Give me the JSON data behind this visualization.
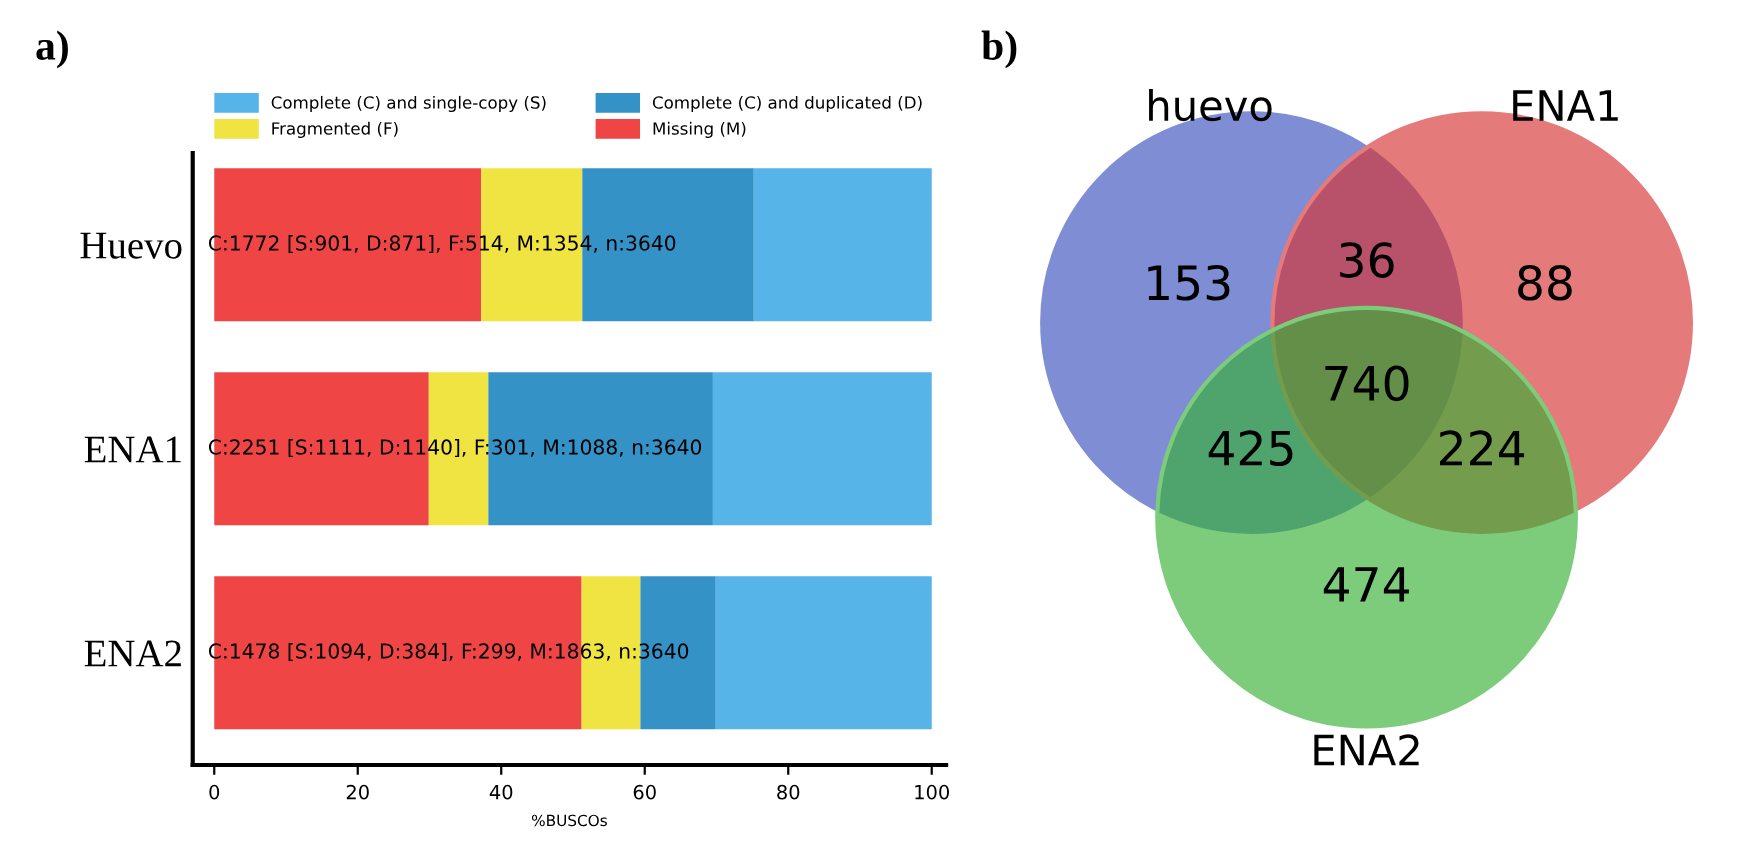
{
  "chart_data": [
    {
      "type": "bar",
      "title": "a)",
      "orientation": "horizontal",
      "stacked": true,
      "legend": "top",
      "grid": false,
      "xlabel": "%BUSCOs",
      "categories": [
        "Huevo",
        "ENA1",
        "ENA2"
      ],
      "series": [
        {
          "name": "Missing (M)",
          "color": "#f04545",
          "values": [
            37.2,
            29.9,
            51.2
          ]
        },
        {
          "name": "Fragmented (F)",
          "color": "#f0e442",
          "values": [
            14.1,
            8.3,
            8.2
          ]
        },
        {
          "name": "Complete (C) and duplicated (D)",
          "color": "#3492c7",
          "values": [
            23.9,
            31.3,
            10.5
          ]
        },
        {
          "name": "Complete (C) and single-copy (S)",
          "color": "#56b4e9",
          "values": [
            24.8,
            30.5,
            30.1
          ]
        }
      ],
      "xlim": [
        -3,
        102
      ],
      "xticks": [
        0,
        20,
        40,
        60,
        80,
        100
      ],
      "annotations": [
        "C:1772 [S:901, D:871], F:514, M:1354, n:3640",
        "C:2251 [S:1111, D:1140], F:301, M:1088, n:3640",
        "C:1478 [S:1094, D:384], F:299, M:1863, n:3640"
      ]
    },
    {
      "type": "other",
      "title": "b)",
      "colors": [
        "#7f8ed4",
        "#e57a7a",
        "#7ccc7c"
      ],
      "annotations": [
        "huevo",
        "ENA1",
        "ENA2",
        "153",
        "88",
        "474",
        "36",
        "425",
        "224",
        "740"
      ]
    }
  ]
}
